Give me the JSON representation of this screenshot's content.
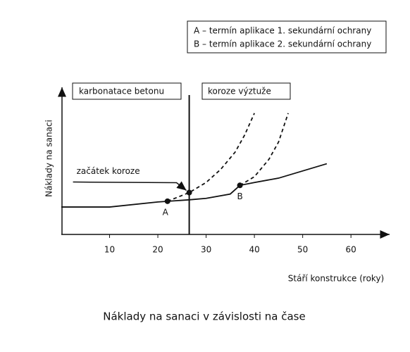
{
  "chart_data": {
    "type": "line",
    "title": "Náklady na sanaci v závislosti na čase",
    "xlabel": "Stáří konstrukce (roky)",
    "ylabel": "Náklady na sanaci",
    "xlim": [
      0,
      68
    ],
    "ylim": [
      0,
      100
    ],
    "xticks": [
      10,
      20,
      30,
      40,
      50,
      60
    ],
    "notes": [
      "A – termín aplikace 1. sekundární ochrany",
      "B – termín aplikace 2. sekundární ochrany"
    ],
    "regions": [
      "karbonatace betonu",
      "koroze výztuže"
    ],
    "divider_x": 26.5,
    "series": [
      {
        "style": "solid",
        "color": "#111111",
        "x": [
          0,
          10,
          20,
          26.5,
          30,
          35,
          37,
          40,
          45,
          50,
          55
        ],
        "values": [
          19,
          19,
          22.5,
          24,
          25,
          28,
          34,
          36,
          39,
          44,
          49
        ]
      },
      {
        "style": "dashed",
        "color": "#111111",
        "x": [
          22,
          26.5,
          30,
          33,
          36,
          38,
          40
        ],
        "values": [
          23,
          29,
          36,
          45,
          57,
          69,
          84
        ]
      },
      {
        "style": "dashed",
        "color": "#111111",
        "x": [
          37,
          40,
          43,
          45,
          47
        ],
        "values": [
          34,
          40,
          52,
          64,
          84
        ]
      }
    ],
    "points": [
      {
        "label": "A",
        "x": 22,
        "y": 23
      },
      {
        "label": "B",
        "x": 37,
        "y": 34
      },
      {
        "label": "začátek koroze",
        "x": 26.5,
        "y": 29
      }
    ]
  }
}
